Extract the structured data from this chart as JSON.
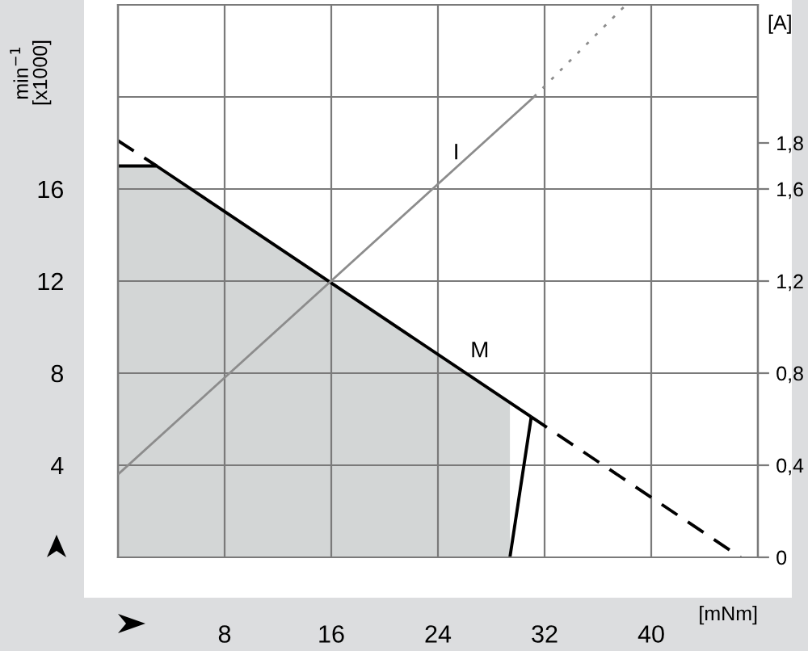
{
  "chart_data": {
    "type": "line",
    "xlabel": "[mNm]",
    "ylabel": "min$^{−1}$\n[x1000]",
    "y2label": "[A]",
    "xlim": [
      0,
      48
    ],
    "ylim": [
      0,
      24
    ],
    "y2lim": [
      0,
      2.4
    ],
    "xticks": [
      {
        "value": 0,
        "label": null
      },
      8,
      16,
      24,
      32,
      40,
      {
        "value": 48,
        "label": null
      }
    ],
    "yticks": [
      {
        "value": 0,
        "label": null
      },
      4,
      8,
      12,
      16,
      {
        "value": 20,
        "label": null
      },
      {
        "value": 24,
        "label": null
      }
    ],
    "y2ticks": [
      0,
      {
        "value": 0.4,
        "label": "0,4"
      },
      {
        "value": 0.8,
        "label": "0,8"
      },
      {
        "value": 1.2,
        "label": "1,2"
      },
      {
        "value": 1.6,
        "label": "1,6"
      },
      {
        "value": 1.8,
        "label": "1,8"
      }
    ],
    "grid": true,
    "legend": false,
    "series": [
      {
        "type": "area",
        "color": "#d3d6d6",
        "x": [
          0,
          2.9,
          29.4
        ],
        "values": [
          17,
          17,
          6.7
        ]
      },
      {
        "color": "#000000",
        "line_style": "solid",
        "x": [
          0,
          2.9,
          31
        ],
        "values": [
          17,
          17,
          6.1
        ]
      },
      {
        "color": "#000000",
        "line_style": "solid",
        "x": [
          29.4,
          31
        ],
        "values": [
          0,
          6.1
        ]
      },
      {
        "color": "#000000",
        "line_style": "dashed",
        "x": [
          0,
          2.9
        ],
        "values": [
          18.1,
          17.0
        ]
      },
      {
        "color": "#000000",
        "line_style": "dashed",
        "x": [
          31,
          46.7
        ],
        "values": [
          6.1,
          0
        ]
      },
      {
        "color": "#8c8c8c",
        "line_style": "solid",
        "axis": "y2",
        "x": [
          0,
          31.2
        ],
        "values": [
          0.36,
          2.0
        ]
      },
      {
        "color": "#8c8c8c",
        "line_style": "dotted",
        "axis": "y2",
        "x": [
          31.2,
          38.1
        ],
        "values": [
          2.0,
          2.4
        ]
      }
    ],
    "annotations": [
      {
        "text": "M",
        "x": 26.1,
        "y": 8.0
      },
      {
        "text": "I",
        "x": 24.8,
        "y": 16.6
      }
    ]
  }
}
